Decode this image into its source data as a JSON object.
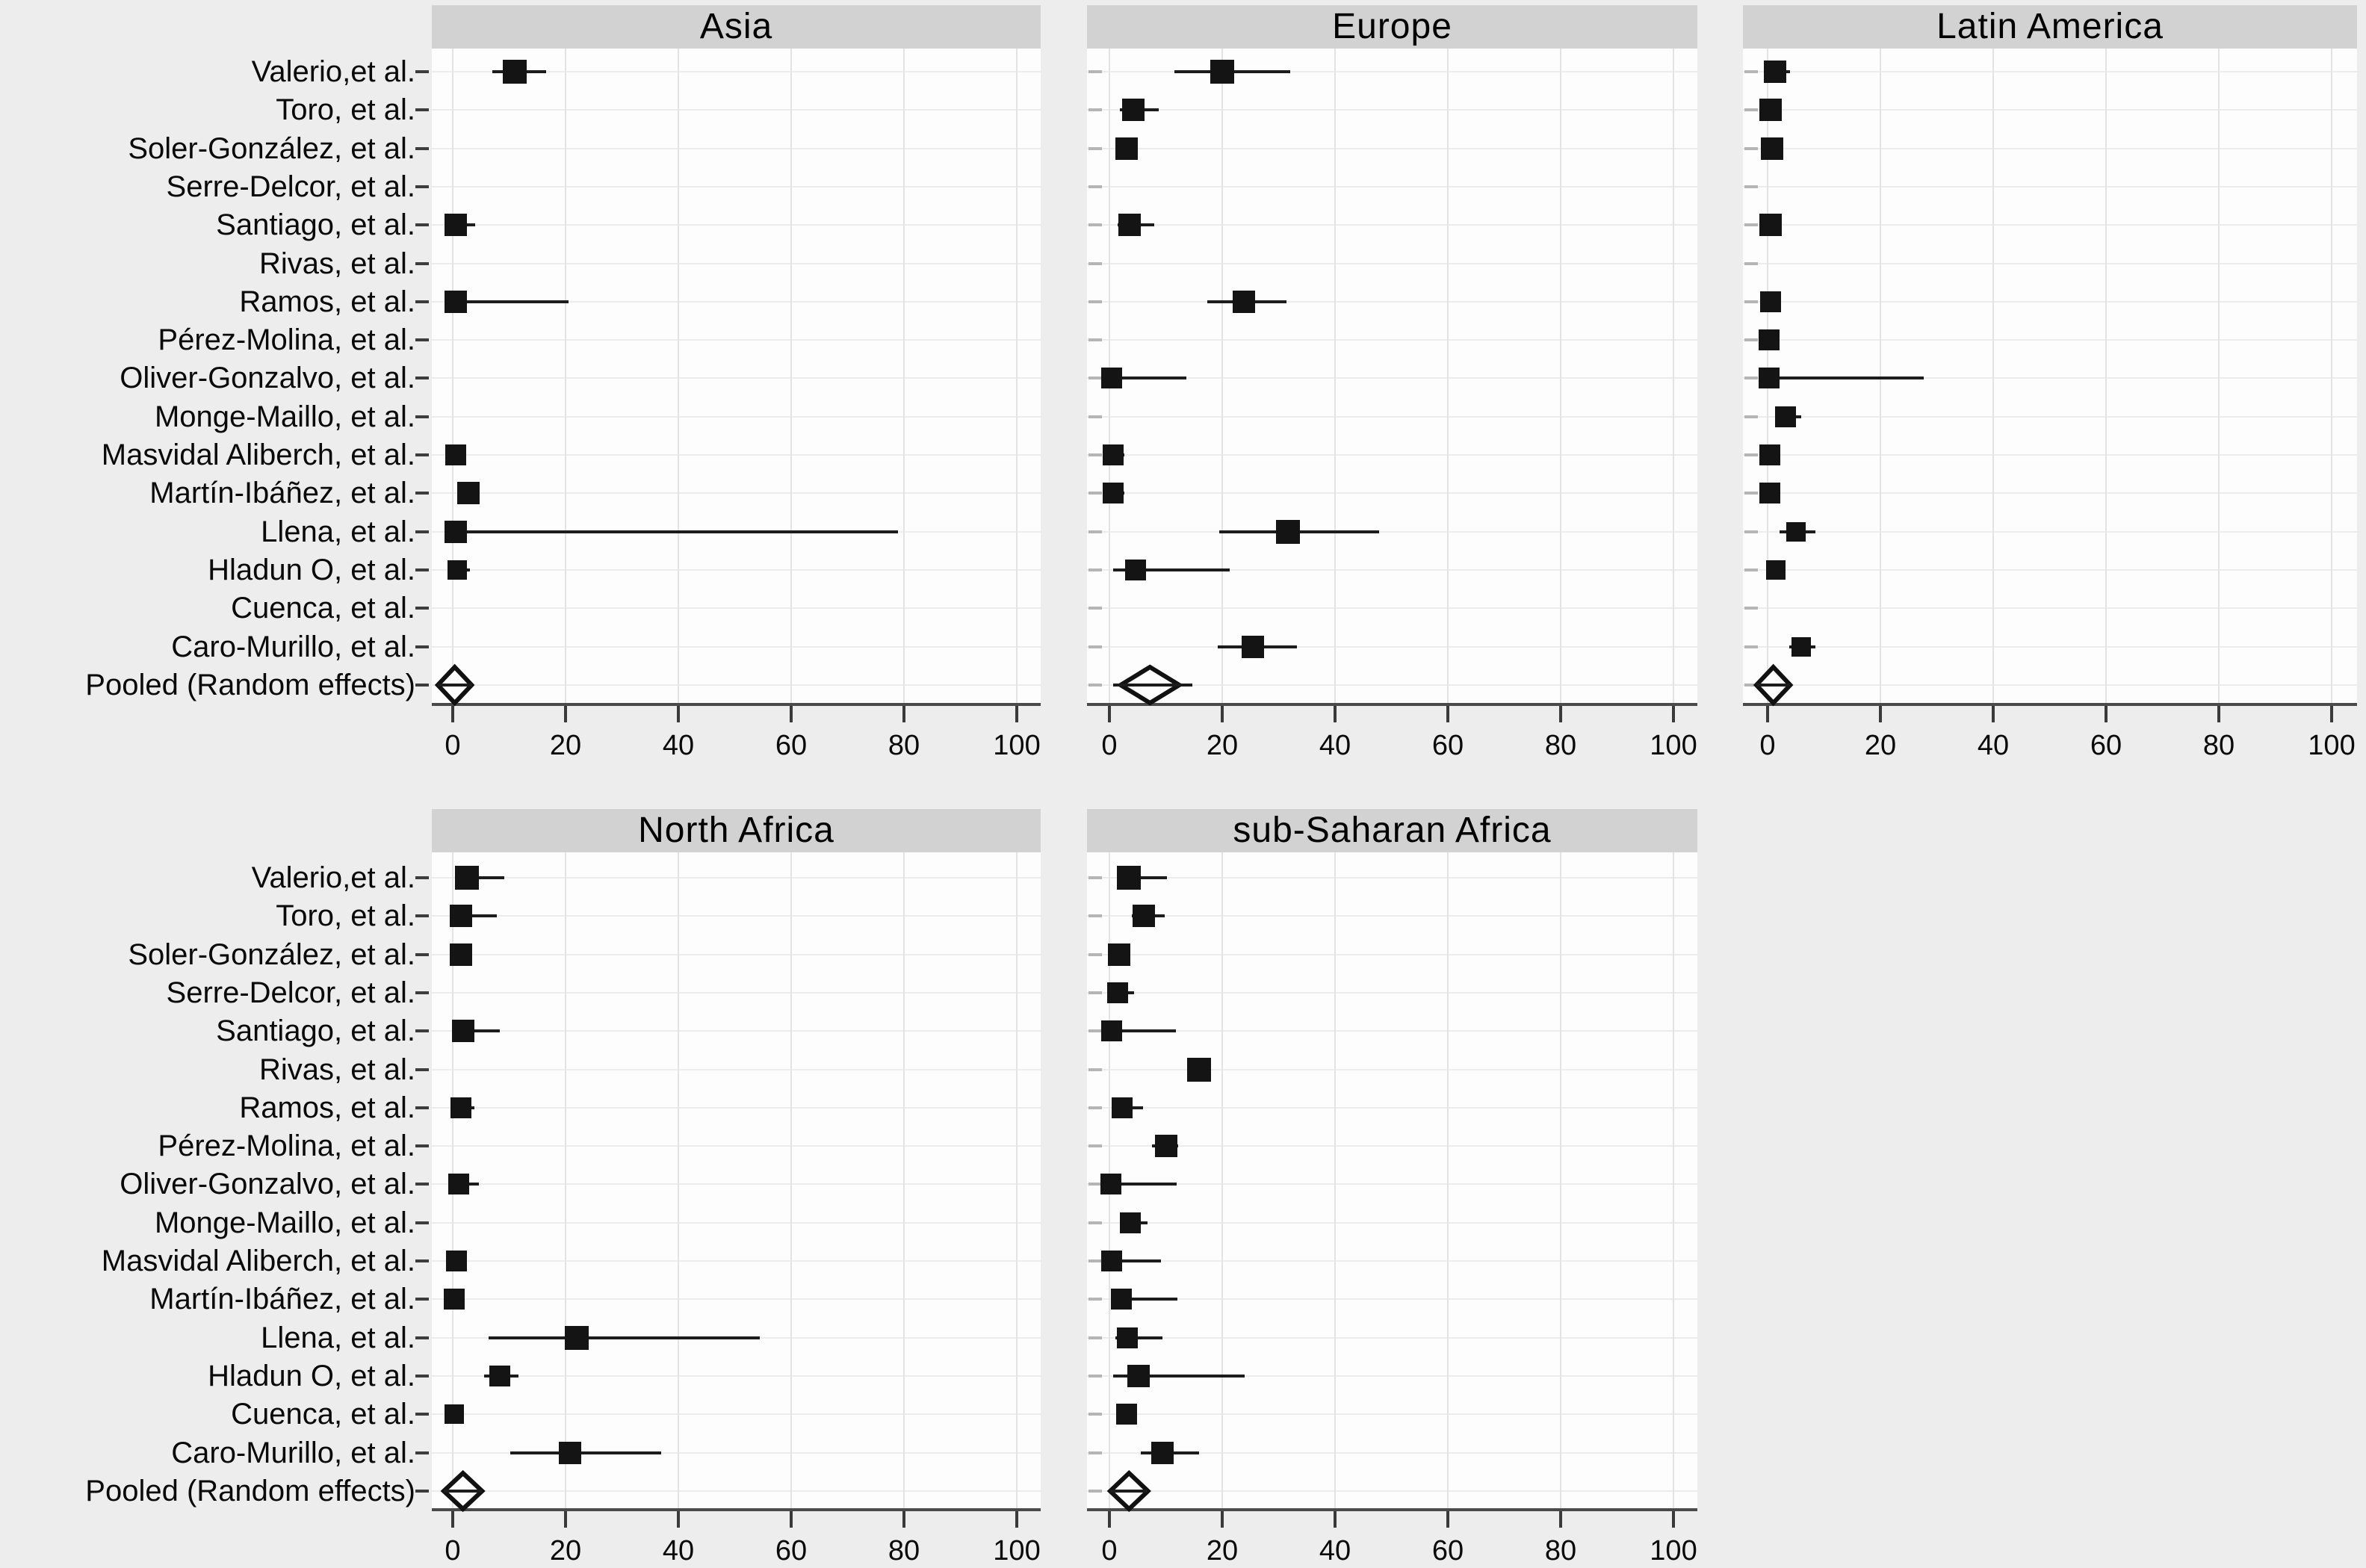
{
  "figure": {
    "background": "#ededed",
    "panel_bg": "#fdfdfd",
    "title_bar_bg": "#d2d2d2",
    "marker_color": "#141414",
    "axis_color": "#3a3a3a",
    "gridline_color": "#e3e3e3"
  },
  "studies": [
    "Valerio,et al.",
    "Toro, et al.",
    "Soler-González, et al.",
    "Serre-Delcor, et al.",
    "Santiago, et al.",
    "Rivas, et al.",
    "Ramos, et al.",
    "Pérez-Molina, et al.",
    "Oliver-Gonzalvo, et al.",
    "Monge-Maillo, et al.",
    "Masvidal Aliberch, et al.",
    "Martín-Ibáñez, et al.",
    "Llena, et al.",
    "Hladun O, et al.",
    "Cuenca, et al.",
    "Caro-Murillo, et al.",
    "Pooled (Random effects)"
  ],
  "x_axis": {
    "ticks": [
      0,
      20,
      40,
      60,
      80,
      100
    ],
    "range": [
      0,
      100
    ],
    "grid": true
  },
  "chart_data": [
    {
      "type": "forest",
      "title": "Asia",
      "rows": [
        {
          "study": "Valerio,et al.",
          "est": 11,
          "lo": 7,
          "hi": 16.5,
          "weight": 32
        },
        {
          "study": "Toro, et al.",
          "est": null,
          "lo": null,
          "hi": null,
          "weight": null
        },
        {
          "study": "Soler-González, et al.",
          "est": null,
          "lo": null,
          "hi": null,
          "weight": null
        },
        {
          "study": "Serre-Delcor, et al.",
          "est": null,
          "lo": null,
          "hi": null,
          "weight": null
        },
        {
          "study": "Santiago, et al.",
          "est": 0.5,
          "lo": 0,
          "hi": 4,
          "weight": 30
        },
        {
          "study": "Rivas, et al.",
          "est": null,
          "lo": null,
          "hi": null,
          "weight": null
        },
        {
          "study": "Ramos, et al.",
          "est": 0.5,
          "lo": 0,
          "hi": 20.5,
          "weight": 30
        },
        {
          "study": "Pérez-Molina, et al.",
          "est": null,
          "lo": null,
          "hi": null,
          "weight": null
        },
        {
          "study": "Oliver-Gonzalvo, et al.",
          "est": null,
          "lo": null,
          "hi": null,
          "weight": null
        },
        {
          "study": "Monge-Maillo, et al.",
          "est": null,
          "lo": null,
          "hi": null,
          "weight": null
        },
        {
          "study": "Masvidal Aliberch, et al.",
          "est": 0.5,
          "lo": 0,
          "hi": 2,
          "weight": 28
        },
        {
          "study": "Martín-Ibáñez, et al.",
          "est": 2.8,
          "lo": 0.8,
          "hi": 4.8,
          "weight": 30
        },
        {
          "study": "Llena, et al.",
          "est": 0.5,
          "lo": 0,
          "hi": 79,
          "weight": 30
        },
        {
          "study": "Hladun O, et al.",
          "est": 0.8,
          "lo": 0,
          "hi": 3,
          "weight": 26
        },
        {
          "study": "Cuenca, et al.",
          "est": null,
          "lo": null,
          "hi": null,
          "weight": null
        },
        {
          "study": "Caro-Murillo, et al.",
          "est": null,
          "lo": null,
          "hi": null,
          "weight": null
        }
      ],
      "pooled": {
        "label": "Pooled (Random effects)",
        "center": 0.4,
        "lo": -2.6,
        "hi": 3.4,
        "line_lo": -2.6,
        "line_hi": 3.4
      }
    },
    {
      "type": "forest",
      "title": "Europe",
      "rows": [
        {
          "study": "Valerio,et al.",
          "est": 20,
          "lo": 11.5,
          "hi": 32,
          "weight": 32
        },
        {
          "study": "Toro, et al.",
          "est": 4.2,
          "lo": 1.9,
          "hi": 8.7,
          "weight": 30
        },
        {
          "study": "Soler-González, et al.",
          "est": 3.1,
          "lo": 1.5,
          "hi": 5,
          "weight": 30
        },
        {
          "study": "Serre-Delcor, et al.",
          "est": null,
          "lo": null,
          "hi": null,
          "weight": null
        },
        {
          "study": "Santiago, et al.",
          "est": 3.6,
          "lo": 1.5,
          "hi": 7.9,
          "weight": 30
        },
        {
          "study": "Rivas, et al.",
          "est": null,
          "lo": null,
          "hi": null,
          "weight": null
        },
        {
          "study": "Ramos, et al.",
          "est": 23.9,
          "lo": 17.3,
          "hi": 31.4,
          "weight": 30
        },
        {
          "study": "Pérez-Molina, et al.",
          "est": null,
          "lo": null,
          "hi": null,
          "weight": null
        },
        {
          "study": "Oliver-Gonzalvo, et al.",
          "est": 0.4,
          "lo": 0,
          "hi": 13.7,
          "weight": 28
        },
        {
          "study": "Monge-Maillo, et al.",
          "est": null,
          "lo": null,
          "hi": null,
          "weight": null
        },
        {
          "study": "Masvidal Aliberch, et al.",
          "est": 0.6,
          "lo": 0,
          "hi": 2.6,
          "weight": 28
        },
        {
          "study": "Martín-Ibáñez, et al.",
          "est": 0.6,
          "lo": 0,
          "hi": 2.6,
          "weight": 28
        },
        {
          "study": "Llena, et al.",
          "est": 31.6,
          "lo": 19.5,
          "hi": 47.8,
          "weight": 32
        },
        {
          "study": "Hladun O, et al.",
          "est": 4.6,
          "lo": 0.7,
          "hi": 21.3,
          "weight": 28
        },
        {
          "study": "Cuenca, et al.",
          "est": null,
          "lo": null,
          "hi": null,
          "weight": null
        },
        {
          "study": "Caro-Murillo, et al.",
          "est": 25.4,
          "lo": 19.2,
          "hi": 33.3,
          "weight": 30
        }
      ],
      "pooled": {
        "label": "Pooled (Random effects)",
        "center": 7.1,
        "lo": 2,
        "hi": 12.4,
        "line_lo": 0.6,
        "line_hi": 14.7
      }
    },
    {
      "type": "forest",
      "title": "Latin America",
      "rows": [
        {
          "study": "Valerio,et al.",
          "est": 1.3,
          "lo": 0.4,
          "hi": 4,
          "weight": 30
        },
        {
          "study": "Toro, et al.",
          "est": 0.5,
          "lo": 0,
          "hi": 1.8,
          "weight": 30
        },
        {
          "study": "Soler-González, et al.",
          "est": 0.8,
          "lo": 0,
          "hi": 2.2,
          "weight": 30
        },
        {
          "study": "Serre-Delcor, et al.",
          "est": null,
          "lo": null,
          "hi": null,
          "weight": null
        },
        {
          "study": "Santiago, et al.",
          "est": 0.5,
          "lo": 0,
          "hi": 1.8,
          "weight": 30
        },
        {
          "study": "Rivas, et al.",
          "est": null,
          "lo": null,
          "hi": null,
          "weight": null
        },
        {
          "study": "Ramos, et al.",
          "est": 0.5,
          "lo": 0,
          "hi": 1.8,
          "weight": 28
        },
        {
          "study": "Pérez-Molina, et al.",
          "est": 0.3,
          "lo": 0,
          "hi": 1.5,
          "weight": 28
        },
        {
          "study": "Oliver-Gonzalvo, et al.",
          "est": 0.3,
          "lo": 0,
          "hi": 27.7,
          "weight": 28
        },
        {
          "study": "Monge-Maillo, et al.",
          "est": 3.2,
          "lo": 1.5,
          "hi": 6,
          "weight": 28
        },
        {
          "study": "Masvidal Aliberch, et al.",
          "est": 0.4,
          "lo": 0,
          "hi": 1.8,
          "weight": 28
        },
        {
          "study": "Martín-Ibáñez, et al.",
          "est": 0.4,
          "lo": 0,
          "hi": 1.8,
          "weight": 28
        },
        {
          "study": "Llena, et al.",
          "est": 5,
          "lo": 2.1,
          "hi": 8.5,
          "weight": 26
        },
        {
          "study": "Hladun O, et al.",
          "est": 1.5,
          "lo": 0.4,
          "hi": 3,
          "weight": 26
        },
        {
          "study": "Cuenca, et al.",
          "est": null,
          "lo": null,
          "hi": null,
          "weight": null
        },
        {
          "study": "Caro-Murillo, et al.",
          "est": 5.9,
          "lo": 3.9,
          "hi": 8.5,
          "weight": 26
        }
      ],
      "pooled": {
        "label": "Pooled (Random effects)",
        "center": 1,
        "lo": -2,
        "hi": 4,
        "line_lo": -2,
        "line_hi": 4
      }
    },
    {
      "type": "forest",
      "title": "North Africa",
      "rows": [
        {
          "study": "Valerio,et al.",
          "est": 2.5,
          "lo": 1,
          "hi": 9.2,
          "weight": 32
        },
        {
          "study": "Toro, et al.",
          "est": 1.5,
          "lo": 0.4,
          "hi": 7.8,
          "weight": 30
        },
        {
          "study": "Soler-González, et al.",
          "est": 1.4,
          "lo": 0.4,
          "hi": 3,
          "weight": 30
        },
        {
          "study": "Serre-Delcor, et al.",
          "est": null,
          "lo": null,
          "hi": null,
          "weight": null
        },
        {
          "study": "Santiago, et al.",
          "est": 1.9,
          "lo": 0.5,
          "hi": 8.4,
          "weight": 30
        },
        {
          "study": "Rivas, et al.",
          "est": null,
          "lo": null,
          "hi": null,
          "weight": null
        },
        {
          "study": "Ramos, et al.",
          "est": 1.4,
          "lo": 0.4,
          "hi": 3.8,
          "weight": 28
        },
        {
          "study": "Pérez-Molina, et al.",
          "est": null,
          "lo": null,
          "hi": null,
          "weight": null
        },
        {
          "study": "Oliver-Gonzalvo, et al.",
          "est": 1,
          "lo": 0,
          "hi": 4.6,
          "weight": 28
        },
        {
          "study": "Monge-Maillo, et al.",
          "est": null,
          "lo": null,
          "hi": null,
          "weight": null
        },
        {
          "study": "Masvidal Aliberch, et al.",
          "est": 0.7,
          "lo": 0,
          "hi": 2.4,
          "weight": 28
        },
        {
          "study": "Martín-Ibáñez, et al.",
          "est": 0.3,
          "lo": 0,
          "hi": 2,
          "weight": 28
        },
        {
          "study": "Llena, et al.",
          "est": 22,
          "lo": 6.4,
          "hi": 54.5,
          "weight": 32
        },
        {
          "study": "Hladun O, et al.",
          "est": 8.4,
          "lo": 5.6,
          "hi": 11.6,
          "weight": 28
        },
        {
          "study": "Cuenca, et al.",
          "est": 0.3,
          "lo": 0,
          "hi": 2,
          "weight": 26
        },
        {
          "study": "Caro-Murillo, et al.",
          "est": 20.8,
          "lo": 10.2,
          "hi": 37,
          "weight": 30
        }
      ],
      "pooled": {
        "label": "Pooled (Random effects)",
        "center": 1.8,
        "lo": -1.6,
        "hi": 5.2,
        "line_lo": -1.6,
        "line_hi": 5.2
      }
    },
    {
      "type": "forest",
      "title": "sub-Saharan Africa",
      "rows": [
        {
          "study": "Valerio,et al.",
          "est": 3.5,
          "lo": 1.5,
          "hi": 10.2,
          "weight": 32
        },
        {
          "study": "Toro, et al.",
          "est": 6.1,
          "lo": 4,
          "hi": 9.8,
          "weight": 30
        },
        {
          "study": "Soler-González, et al.",
          "est": 1.7,
          "lo": 0.5,
          "hi": 3.4,
          "weight": 30
        },
        {
          "study": "Serre-Delcor, et al.",
          "est": 1.5,
          "lo": 0.4,
          "hi": 4.4,
          "weight": 28
        },
        {
          "study": "Santiago, et al.",
          "est": 0.4,
          "lo": 0,
          "hi": 11.8,
          "weight": 28
        },
        {
          "study": "Rivas, et al.",
          "est": 15.9,
          "lo": 14.2,
          "hi": 17.8,
          "weight": 32
        },
        {
          "study": "Ramos, et al.",
          "est": 2.2,
          "lo": 0.5,
          "hi": 6,
          "weight": 28
        },
        {
          "study": "Pérez-Molina, et al.",
          "est": 10,
          "lo": 7.5,
          "hi": 12.2,
          "weight": 30
        },
        {
          "study": "Oliver-Gonzalvo, et al.",
          "est": 0.3,
          "lo": 0,
          "hi": 11.9,
          "weight": 28
        },
        {
          "study": "Monge-Maillo, et al.",
          "est": 3.7,
          "lo": 2,
          "hi": 6.7,
          "weight": 28
        },
        {
          "study": "Masvidal Aliberch, et al.",
          "est": 0.4,
          "lo": 0,
          "hi": 9.2,
          "weight": 28
        },
        {
          "study": "Martín-Ibáñez, et al.",
          "est": 2.1,
          "lo": 0.5,
          "hi": 12,
          "weight": 28
        },
        {
          "study": "Llena, et al.",
          "est": 3.2,
          "lo": 1,
          "hi": 9.4,
          "weight": 28
        },
        {
          "study": "Hladun O, et al.",
          "est": 5.2,
          "lo": 0.7,
          "hi": 24,
          "weight": 30
        },
        {
          "study": "Cuenca, et al.",
          "est": 3,
          "lo": 1.5,
          "hi": 4.6,
          "weight": 28
        },
        {
          "study": "Caro-Murillo, et al.",
          "est": 9.4,
          "lo": 5.5,
          "hi": 15.9,
          "weight": 30
        }
      ],
      "pooled": {
        "label": "Pooled (Random effects)",
        "center": 3.4,
        "lo": 0.1,
        "hi": 6.8,
        "line_lo": 0.1,
        "line_hi": 6.8
      }
    }
  ]
}
